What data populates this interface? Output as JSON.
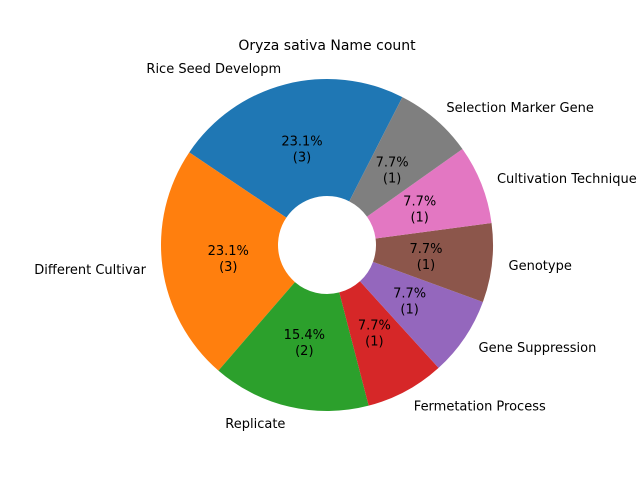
{
  "chart_data": {
    "type": "pie",
    "title": "Oryza sativa Name count",
    "donut": true,
    "slices": [
      {
        "label": "Rice Seed Developm",
        "value": 3,
        "pct_label": "23.1%",
        "count_label": "(3)",
        "color": "#1f77b4"
      },
      {
        "label": "Different Cultivar",
        "value": 3,
        "pct_label": "23.1%",
        "count_label": "(3)",
        "color": "#ff7f0e"
      },
      {
        "label": "Replicate",
        "value": 2,
        "pct_label": "15.4%",
        "count_label": "(2)",
        "color": "#2ca02c"
      },
      {
        "label": "Fermetation Process",
        "value": 1,
        "pct_label": "7.7%",
        "count_label": "(1)",
        "color": "#d62728"
      },
      {
        "label": "Gene Suppression",
        "value": 1,
        "pct_label": "7.7%",
        "count_label": "(1)",
        "color": "#9467bd"
      },
      {
        "label": "Genotype",
        "value": 1,
        "pct_label": "7.7%",
        "count_label": "(1)",
        "color": "#8c564b"
      },
      {
        "label": "Cultivation Technique",
        "value": 1,
        "pct_label": "7.7%",
        "count_label": "(1)",
        "color": "#e377c2"
      },
      {
        "label": "Selection Marker Gene",
        "value": 1,
        "pct_label": "7.7%",
        "count_label": "(1)",
        "color": "#7f7f7f"
      }
    ]
  }
}
